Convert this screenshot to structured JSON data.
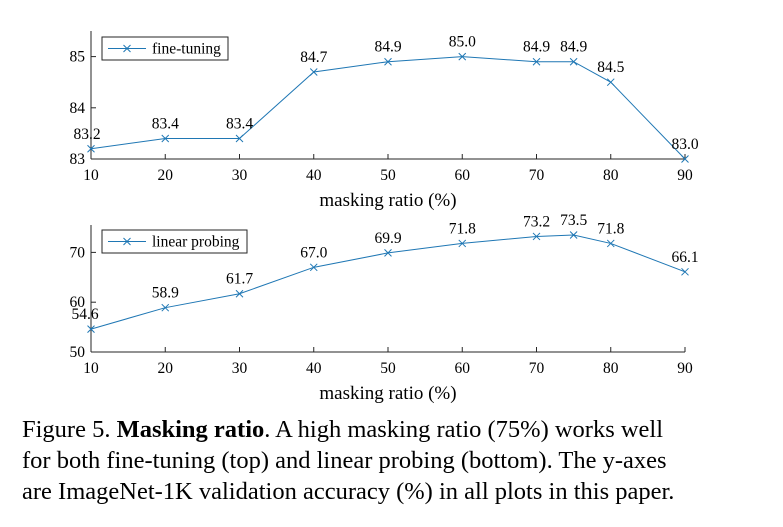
{
  "chart_data": [
    {
      "type": "line",
      "title": "",
      "xlabel": "masking ratio (%)",
      "ylabel": "",
      "xlim": [
        10,
        90
      ],
      "ylim": [
        83,
        85.5
      ],
      "xticks": [
        10,
        20,
        30,
        40,
        50,
        60,
        70,
        80,
        90
      ],
      "yticks": [
        83,
        84,
        85
      ],
      "grid": false,
      "legend_position": "top-left",
      "series": [
        {
          "name": "fine-tuning",
          "color": "#1f77b4",
          "marker": "x",
          "x": [
            10,
            20,
            30,
            40,
            50,
            60,
            70,
            75,
            80,
            90
          ],
          "values": [
            83.2,
            83.4,
            83.4,
            84.7,
            84.9,
            85.0,
            84.9,
            84.9,
            84.5,
            83.0
          ],
          "labels": [
            "83.2",
            "83.4",
            "83.4",
            "84.7",
            "84.9",
            "85.0",
            "84.9",
            "84.9",
            "84.5",
            "83.0"
          ]
        }
      ]
    },
    {
      "type": "line",
      "title": "",
      "xlabel": "masking ratio (%)",
      "ylabel": "",
      "xlim": [
        10,
        90
      ],
      "ylim": [
        50,
        75.5
      ],
      "xticks": [
        10,
        20,
        30,
        40,
        50,
        60,
        70,
        80,
        90
      ],
      "yticks": [
        50,
        60,
        70
      ],
      "grid": false,
      "legend_position": "top-left",
      "series": [
        {
          "name": "linear probing",
          "color": "#1f77b4",
          "marker": "x",
          "x": [
            10,
            20,
            30,
            40,
            50,
            60,
            70,
            75,
            80,
            90
          ],
          "values": [
            54.6,
            58.9,
            61.7,
            67.0,
            69.9,
            71.8,
            73.2,
            73.5,
            71.8,
            66.1
          ],
          "labels": [
            "54.6",
            "58.9",
            "61.7",
            "67.0",
            "69.9",
            "71.8",
            "73.2",
            "73.5",
            "71.8",
            "66.1"
          ]
        }
      ]
    }
  ],
  "caption": {
    "figure_label": "Figure 5.",
    "title_bold": "Masking ratio",
    "line1_rest": ". A high masking ratio (75%) works well",
    "line2": "for both fine-tuning (top) and linear probing (bottom). The y-axes",
    "line3": "are ImageNet-1K validation accuracy (%) in all plots in this paper."
  }
}
